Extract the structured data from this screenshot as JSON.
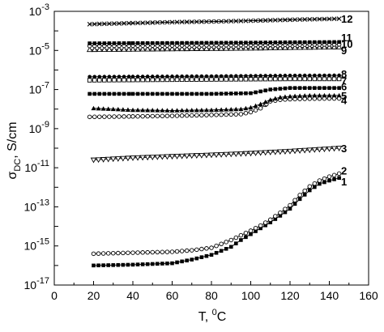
{
  "chart_data": {
    "type": "scatter",
    "title": "",
    "xlabel": {
      "base": "T, ",
      "sup": "0",
      "rest": "C"
    },
    "ylabel": {
      "base": "σ",
      "sub": "DC",
      "rest": ", S/cm"
    },
    "x_range": [
      0,
      160
    ],
    "x_ticks": [
      0,
      20,
      40,
      60,
      80,
      100,
      120,
      140,
      160
    ],
    "y_scale": "log",
    "y_range": [
      1e-17,
      0.001
    ],
    "y_ticks": [
      {
        "base": "10",
        "exp": "-3"
      },
      {
        "base": "10",
        "exp": "-5"
      },
      {
        "base": "10",
        "exp": "-7"
      },
      {
        "base": "10",
        "exp": "-9"
      },
      {
        "base": "10",
        "exp": "-11"
      },
      {
        "base": "10",
        "exp": "-13"
      },
      {
        "base": "10",
        "exp": "-15"
      },
      {
        "base": "10",
        "exp": "-17"
      }
    ],
    "grid": false,
    "line_color": "#000000",
    "series": [
      {
        "label": "1",
        "marker": "square-filled",
        "x": [
          20,
          40,
          60,
          70,
          80,
          90,
          95,
          100,
          105,
          110,
          115,
          120,
          125,
          130,
          135,
          140,
          145
        ],
        "y": [
          1e-16,
          1.1e-16,
          1.3e-16,
          2e-16,
          3.5e-16,
          9e-16,
          2e-15,
          4e-15,
          8e-15,
          1.6e-14,
          3.5e-14,
          8e-14,
          2.5e-13,
          7e-13,
          1.5e-12,
          2.2e-12,
          3e-12
        ]
      },
      {
        "label": "2",
        "marker": "circle-open",
        "x": [
          20,
          40,
          60,
          70,
          80,
          90,
          95,
          100,
          105,
          110,
          115,
          120,
          125,
          130,
          135,
          140,
          145
        ],
        "y": [
          4e-16,
          4.5e-16,
          5e-16,
          6e-16,
          8e-16,
          2e-15,
          3.5e-15,
          6e-15,
          1.1e-14,
          2.2e-14,
          5e-14,
          1.2e-13,
          4e-13,
          1.1e-12,
          2.2e-12,
          3.5e-12,
          5e-12
        ]
      },
      {
        "label": "3",
        "marker": "triangle-down-open",
        "x": [
          20,
          40,
          60,
          80,
          100,
          120,
          145
        ],
        "y": [
          2.5e-11,
          3.2e-11,
          3.8e-11,
          4.5e-11,
          5.5e-11,
          7e-11,
          1e-10
        ]
      },
      {
        "label": "4",
        "marker": "circle-open",
        "x": [
          18,
          40,
          60,
          80,
          95,
          100,
          105,
          108,
          110,
          115,
          120,
          130,
          145
        ],
        "y": [
          4e-09,
          4.2e-09,
          4.5e-09,
          5e-09,
          5.5e-09,
          7e-09,
          1.1e-08,
          1.8e-08,
          2.5e-08,
          3e-08,
          3.2e-08,
          3.4e-08,
          3.5e-08
        ]
      },
      {
        "label": "5",
        "marker": "triangle-up-filled",
        "x": [
          20,
          40,
          60,
          80,
          95,
          100,
          105,
          110,
          115,
          120,
          130,
          145
        ],
        "y": [
          1.1e-08,
          9e-09,
          8.5e-09,
          9e-09,
          1e-08,
          1.2e-08,
          1.8e-08,
          3e-08,
          4e-08,
          4.5e-08,
          5e-08,
          5e-08
        ]
      },
      {
        "label": "6",
        "marker": "square-filled",
        "x": [
          18,
          40,
          60,
          80,
          100,
          105,
          110,
          115,
          120,
          130,
          145
        ],
        "y": [
          6e-08,
          6e-08,
          6e-08,
          6e-08,
          6.5e-08,
          8e-08,
          1e-07,
          1.1e-07,
          1.2e-07,
          1.2e-07,
          1.2e-07
        ]
      },
      {
        "label": "7",
        "marker": "square-open",
        "x": [
          18,
          40,
          60,
          80,
          100,
          120,
          145
        ],
        "y": [
          3e-07,
          3.1e-07,
          3.2e-07,
          3.3e-07,
          3.4e-07,
          3.5e-07,
          3.5e-07
        ]
      },
      {
        "label": "8",
        "marker": "circle-filled",
        "x": [
          18,
          40,
          60,
          80,
          100,
          120,
          145
        ],
        "y": [
          4.5e-07,
          4.6e-07,
          4.7e-07,
          4.8e-07,
          5e-07,
          5.2e-07,
          5.3e-07
        ]
      },
      {
        "label": "9",
        "marker": "triangle-up-open",
        "x": [
          18,
          40,
          60,
          80,
          100,
          120,
          145
        ],
        "y": [
          1.1e-05,
          1.15e-05,
          1.2e-05,
          1.25e-05,
          1.3e-05,
          1.4e-05,
          1.5e-05
        ]
      },
      {
        "label": "10",
        "marker": "circle-open",
        "x": [
          18,
          40,
          60,
          80,
          100,
          120,
          145
        ],
        "y": [
          1.7e-05,
          1.75e-05,
          1.8e-05,
          1.85e-05,
          1.9e-05,
          2e-05,
          2.05e-05
        ]
      },
      {
        "label": "11",
        "marker": "square-filled",
        "x": [
          18,
          40,
          60,
          80,
          100,
          120,
          145
        ],
        "y": [
          2.3e-05,
          2.35e-05,
          2.4e-05,
          2.45e-05,
          2.5e-05,
          2.6e-05,
          2.7e-05
        ]
      },
      {
        "label": "12",
        "marker": "x",
        "x": [
          18,
          40,
          60,
          80,
          100,
          120,
          145
        ],
        "y": [
          0.00022,
          0.00025,
          0.00028,
          0.0003,
          0.00033,
          0.00037,
          0.00042
        ]
      }
    ]
  }
}
